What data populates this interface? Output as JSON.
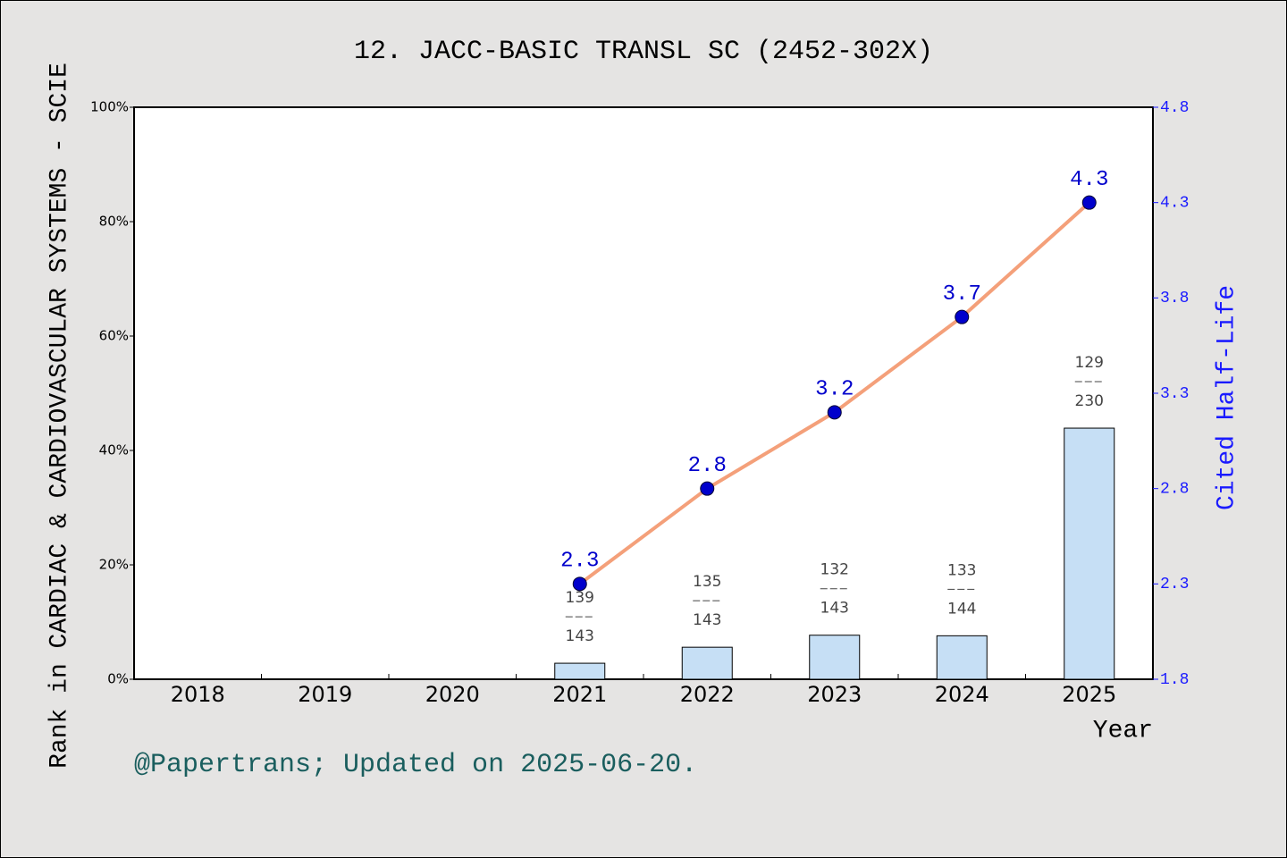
{
  "chart_data": {
    "type": "bar",
    "title": "12. JACC-BASIC TRANSL SC (2452-302X)",
    "x_label": "Year",
    "y_label": "Rank in CARDIAC & CARDIOVASCULAR SYSTEMS - SCIE",
    "y2_label": "Cited Half-Life",
    "footer": "@Papertrans; Updated on 2025-06-20.",
    "categories": [
      "2018",
      "2019",
      "2020",
      "2021",
      "2022",
      "2023",
      "2024",
      "2025"
    ],
    "series": [
      {
        "type": "bar",
        "color": "#c6dff5",
        "values": [
          null,
          null,
          null,
          2.8,
          5.6,
          7.7,
          7.6,
          43.9
        ],
        "ranks": [
          null,
          null,
          null,
          "139",
          "135",
          "132",
          "133",
          "129"
        ],
        "totals": [
          null,
          null,
          null,
          "143",
          "143",
          "143",
          "144",
          "230"
        ]
      },
      {
        "type": "line",
        "axis": "y2",
        "color": "#f4a07a",
        "marker_color": "#0000cc",
        "values": [
          null,
          null,
          null,
          2.3,
          2.8,
          3.2,
          3.7,
          4.3
        ]
      }
    ],
    "ylim": [
      0,
      100
    ],
    "yticks": [
      {
        "value": 0,
        "label": "0%"
      },
      {
        "value": 20,
        "label": "20%"
      },
      {
        "value": 40,
        "label": "40%"
      },
      {
        "value": 60,
        "label": "60%"
      },
      {
        "value": 80,
        "label": "80%"
      },
      {
        "value": 100,
        "label": "100%"
      }
    ],
    "y2lim": [
      1.8,
      4.8
    ],
    "y2ticks": [
      1.8,
      2.3,
      2.8,
      3.3,
      3.8,
      4.3,
      4.8
    ],
    "grid": false
  }
}
